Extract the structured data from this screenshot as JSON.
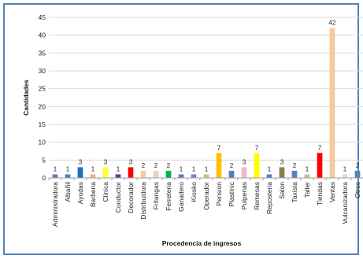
{
  "chart_data": {
    "type": "bar",
    "title": "",
    "xlabel": "Procedencia de ingresos",
    "ylabel": "Cantidades",
    "ylim": [
      0,
      45
    ],
    "yticks": [
      0,
      5,
      10,
      15,
      20,
      25,
      30,
      35,
      40,
      45
    ],
    "grid": true,
    "legend": "none",
    "categories": [
      "Administradora",
      "Albañil",
      "Ayudas",
      "Barberia",
      "Clinica",
      "Conductor",
      "Decorador",
      "Distribuidora",
      "Fritangas",
      "Ferreteria",
      "Ganadero",
      "Kiosko",
      "Operador",
      "Pension",
      "Plastinic",
      "Pulperias",
      "Remesas",
      "Reposteria",
      "Salon",
      "Taxista",
      "Taller",
      "Tiendas",
      "Ventas",
      "Vulcanizadora",
      "Otros"
    ],
    "values": [
      1,
      1,
      3,
      1,
      3,
      1,
      3,
      2,
      2,
      2,
      1,
      1,
      1,
      7,
      2,
      3,
      7,
      1,
      3,
      2,
      1,
      7,
      42,
      1,
      2
    ],
    "colors": [
      "#4f81bd",
      "#4f81bd",
      "#1f6fbf",
      "#f4b183",
      "#ffff33",
      "#7030a0",
      "#ff0000",
      "#f8cbad",
      "#ddd9c3",
      "#00b050",
      "#4f81bd",
      "#7f7fbf",
      "#a9d18e",
      "#ffc000",
      "#4f81bd",
      "#f2b6c6",
      "#ffff00",
      "#4f81bd",
      "#8b7f4a",
      "#4f81bd",
      "#a9d18e",
      "#ff0000",
      "#f8c8a0",
      "#c6e0f5",
      "#4f81bd"
    ]
  }
}
